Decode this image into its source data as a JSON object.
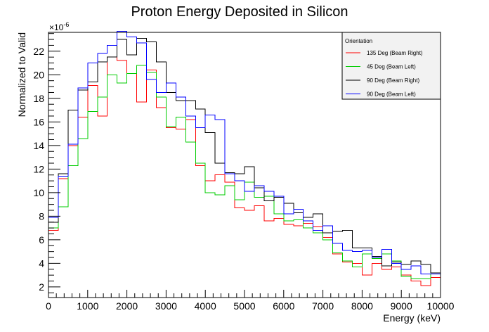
{
  "chart_data": {
    "type": "line",
    "title": "Proton Energy Deposited in Silicon",
    "xlabel": "Energy (keV)",
    "ylabel": "Normalized to Valid",
    "y_multiplier_label": "×10",
    "y_multiplier_exponent": "-6",
    "xlim": [
      0,
      10000
    ],
    "ylim": [
      1.1,
      23.6
    ],
    "x_ticks": [
      0,
      1000,
      2000,
      3000,
      4000,
      5000,
      6000,
      7000,
      8000,
      9000,
      10000
    ],
    "y_ticks": [
      2,
      4,
      6,
      8,
      10,
      12,
      14,
      16,
      18,
      20,
      22
    ],
    "legend": {
      "title": "Orientation",
      "placement": "top-right"
    },
    "bin_edges": [
      0,
      250,
      500,
      750,
      1000,
      1250,
      1500,
      1750,
      2000,
      2250,
      2500,
      2750,
      3000,
      3250,
      3500,
      3750,
      4000,
      4250,
      4500,
      4750,
      5000,
      5250,
      5500,
      5750,
      6000,
      6250,
      6500,
      6750,
      7000,
      7250,
      7500,
      7750,
      8000,
      8250,
      8500,
      8750,
      9000,
      9250,
      9500,
      9750,
      10000
    ],
    "series": [
      {
        "name": "135 Deg (Beam Right)",
        "color": "#ff0000",
        "values": [
          6.8,
          11.2,
          14.0,
          16.4,
          19.1,
          16.5,
          21.5,
          21.2,
          20.1,
          17.7,
          20.4,
          17.2,
          15.5,
          15.4,
          16.2,
          12.3,
          11.0,
          11.5,
          10.9,
          8.7,
          8.5,
          8.9,
          7.6,
          7.8,
          7.3,
          7.2,
          7.4,
          7.1,
          6.2,
          4.8,
          4.1,
          4.0,
          3.0,
          4.0,
          3.5,
          3.7,
          3.0,
          2.5,
          2.1,
          2.8
        ]
      },
      {
        "name": "45 Deg (Beam Left)",
        "color": "#00cc00",
        "values": [
          7.0,
          8.8,
          12.3,
          14.6,
          16.9,
          18.1,
          20.0,
          19.3,
          20.1,
          20.8,
          20.2,
          18.1,
          15.6,
          16.4,
          14.3,
          12.5,
          10.0,
          9.8,
          10.6,
          9.4,
          10.9,
          9.6,
          9.7,
          8.2,
          7.6,
          7.7,
          7.0,
          6.6,
          6.0,
          4.9,
          4.2,
          3.7,
          4.8,
          4.4,
          4.8,
          4.2,
          2.9,
          2.7,
          2.7,
          3.1
        ]
      },
      {
        "name": "90 Deg (Beam Right)",
        "color": "#000000",
        "values": [
          7.5,
          11.6,
          17.0,
          18.7,
          19.4,
          21.1,
          21.5,
          23.0,
          21.7,
          23.1,
          22.8,
          21.1,
          18.5,
          17.8,
          17.8,
          17.1,
          15.1,
          12.5,
          11.7,
          11.6,
          12.2,
          10.4,
          9.3,
          9.6,
          9.1,
          8.3,
          7.9,
          8.2,
          6.6,
          6.7,
          6.8,
          5.3,
          5.3,
          4.6,
          3.8,
          4.1,
          3.9,
          4.2,
          3.9,
          3.2
        ]
      },
      {
        "name": "90 Deg (Beam Left)",
        "color": "#0000ff",
        "values": [
          7.9,
          11.4,
          14.1,
          18.9,
          21.0,
          21.8,
          22.5,
          23.7,
          23.2,
          22.7,
          19.6,
          18.5,
          19.3,
          18.1,
          16.5,
          15.5,
          16.6,
          16.2,
          11.6,
          11.0,
          10.1,
          10.6,
          10.1,
          9.7,
          8.2,
          8.6,
          7.6,
          6.8,
          7.2,
          5.7,
          5.1,
          5.0,
          5.1,
          4.5,
          5.2,
          4.0,
          3.5,
          3.8,
          3.1,
          3.1
        ]
      }
    ]
  }
}
